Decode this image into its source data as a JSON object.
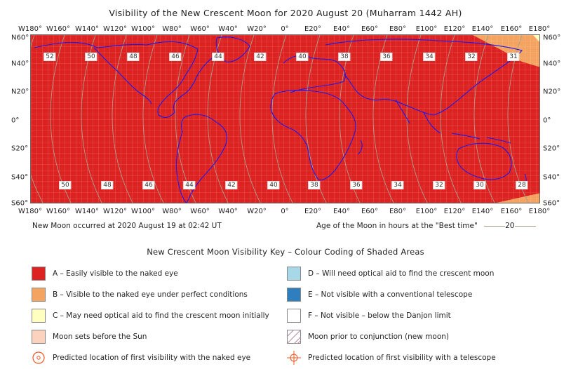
{
  "title": "Visibility of the New Crescent Moon for 2020 August 20 (Muharram 1442 AH)",
  "longitude_labels": [
    "W180°",
    "W160°",
    "W140°",
    "W120°",
    "W100°",
    "W80°",
    "W60°",
    "W40°",
    "W20°",
    "0°",
    "E20°",
    "E40°",
    "E60°",
    "E80°",
    "E100°",
    "E120°",
    "E140°",
    "E160°",
    "E180°"
  ],
  "latitude_labels": [
    "N60°",
    "N40°",
    "N20°",
    "0°",
    "S20°",
    "S40°",
    "S60°"
  ],
  "age_labels_north": [
    "52",
    "50",
    "48",
    "46",
    "44",
    "42",
    "40",
    "38",
    "36",
    "34",
    "32",
    "31"
  ],
  "age_labels_south": [
    "50",
    "48",
    "46",
    "44",
    "42",
    "40",
    "38",
    "36",
    "34",
    "32",
    "30",
    "28"
  ],
  "new_moon_note": "New Moon occurred at 2020 August 19 at 02:42 UT",
  "age_legend": "Age of the Moon in hours at the \"Best time\"",
  "age_legend_value": "20",
  "key_title": "New Crescent Moon Visibility Key – Colour Coding of Shaded Areas",
  "colors": {
    "zone_a": "#dd2222",
    "zone_b": "#f4a460",
    "zone_c": "#ffffc0",
    "zone_d": "#a8d8e8",
    "zone_e": "#2f7fbf",
    "zone_f": "#ffffff",
    "sets_before_sun": "#fbd2be",
    "coast": "#1a1aee",
    "age_curve": "#a8a08a",
    "marker": "#ee5522"
  },
  "key": {
    "a": "A – Easily visible to the naked eye",
    "b": "B – Visible to the naked eye under perfect conditions",
    "c": "C – May need optical aid to find the crescent moon initially",
    "sets": "Moon sets before the Sun",
    "naked_eye_location": "Predicted location of first visibility with the naked eye",
    "d": "D – Will need optical aid to find the crescent moon",
    "e": "E – Not visible with a conventional telescope",
    "f": "F – Not visible – below the Danjon limit",
    "prior": "Moon prior to conjunction (new moon)",
    "telescope_location": "Predicted location of first visibility with a telescope"
  },
  "icons": {
    "naked_eye_location": "target-circle-icon",
    "telescope_location": "crosshair-icon",
    "prior": "hatched-swatch-icon"
  }
}
